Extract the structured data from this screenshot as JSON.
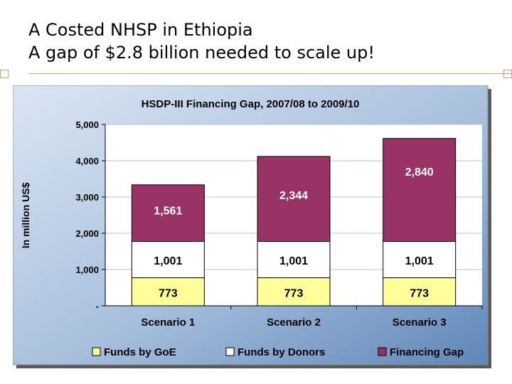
{
  "slide": {
    "title_line1": "A Costed NHSP in Ethiopia",
    "title_line2": "A gap of $2.8 billion needed to scale up!"
  },
  "chart_data": {
    "type": "bar",
    "stacked": true,
    "title": "HSDP-III Financing Gap, 2007/08 to 2009/10",
    "xlabel": "",
    "ylabel": "In million US$",
    "ylim": [
      0,
      5000
    ],
    "yticks": [
      0,
      1000,
      2000,
      3000,
      4000,
      5000
    ],
    "ytick_labels": [
      "-",
      "1,000",
      "2,000",
      "3,000",
      "4,000",
      "5,000"
    ],
    "categories": [
      "Scenario 1",
      "Scenario 2",
      "Scenario 3"
    ],
    "series": [
      {
        "name": "Funds by GoE",
        "values": [
          773,
          773,
          773
        ],
        "labels": [
          "773",
          "773",
          "773"
        ],
        "color": "#ffff99"
      },
      {
        "name": "Funds by Donors",
        "values": [
          1001,
          1001,
          1001
        ],
        "labels": [
          "1,001",
          "1,001",
          "1,001"
        ],
        "color": "#ffffff"
      },
      {
        "name": "Financing Gap",
        "values": [
          1561,
          2344,
          2840
        ],
        "labels": [
          "1,561",
          "2,344",
          "2,840"
        ],
        "color": "#993366"
      }
    ],
    "grid": true,
    "legend_position": "bottom",
    "colors": {
      "panel_bg": "#6e93c2",
      "plot_bg": "#ffffff",
      "gridline": "#b0c4de",
      "text_dark": "#000000",
      "text_light": "#ffffff"
    }
  }
}
